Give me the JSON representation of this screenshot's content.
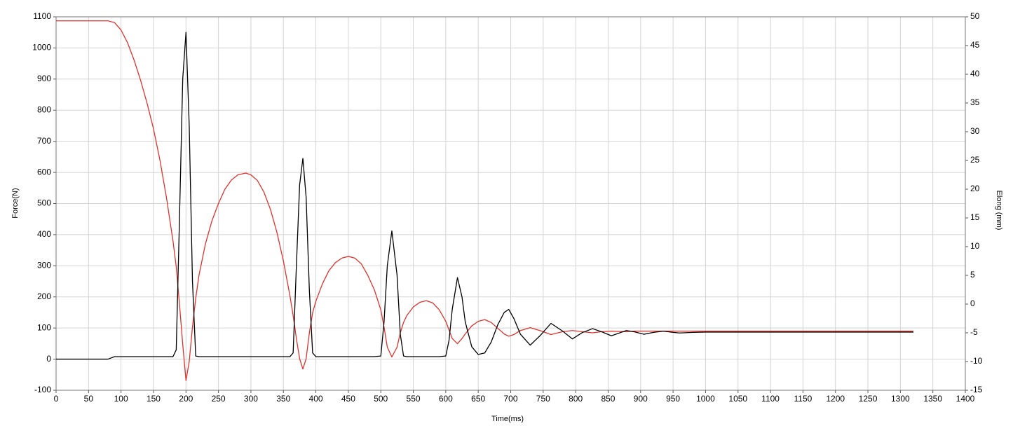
{
  "chart_data": {
    "type": "line",
    "x_label": "Time(ms)",
    "y_label": "Force(N)",
    "y2_label": "Elong (mm)",
    "x": [
      0,
      20,
      40,
      60,
      80,
      90,
      100,
      110,
      120,
      130,
      140,
      150,
      160,
      170,
      180,
      185,
      190,
      195,
      200,
      205,
      210,
      215,
      220,
      230,
      240,
      250,
      260,
      270,
      280,
      292,
      300,
      310,
      320,
      330,
      340,
      350,
      360,
      365,
      370,
      375,
      380,
      385,
      390,
      395,
      400,
      410,
      420,
      430,
      440,
      450,
      460,
      470,
      480,
      490,
      500,
      505,
      510,
      517,
      525,
      530,
      535,
      540,
      550,
      560,
      570,
      580,
      590,
      600,
      605,
      610,
      618,
      625,
      630,
      640,
      650,
      660,
      670,
      680,
      690,
      697,
      705,
      715,
      730,
      745,
      762,
      780,
      795,
      810,
      826,
      840,
      855,
      878,
      890,
      905,
      920,
      935,
      950,
      960,
      980,
      1000,
      1050,
      1100,
      1150,
      1200,
      1250,
      1300,
      1320
    ],
    "series": [
      {
        "name": "Force",
        "color": "#000000",
        "axis": "y",
        "values": [
          0,
          0,
          0,
          0,
          0,
          8,
          8,
          8,
          8,
          8,
          8,
          8,
          8,
          8,
          8,
          30,
          450,
          900,
          1050,
          750,
          250,
          10,
          8,
          8,
          8,
          8,
          8,
          8,
          8,
          8,
          8,
          8,
          8,
          8,
          8,
          8,
          8,
          20,
          300,
          560,
          645,
          520,
          220,
          20,
          8,
          8,
          8,
          8,
          8,
          8,
          8,
          8,
          8,
          8,
          10,
          120,
          300,
          412,
          270,
          80,
          10,
          8,
          8,
          8,
          8,
          8,
          8,
          10,
          60,
          160,
          262,
          200,
          120,
          40,
          15,
          20,
          55,
          110,
          150,
          160,
          130,
          80,
          45,
          75,
          115,
          90,
          65,
          85,
          98,
          88,
          75,
          92,
          88,
          80,
          86,
          90,
          86,
          84,
          86,
          87,
          87,
          87,
          87,
          87,
          87,
          87,
          87
        ]
      },
      {
        "name": "Elong",
        "color": "#e0322d",
        "axis": "y2",
        "values": [
          49.3,
          49.3,
          49.3,
          49.3,
          49.3,
          49,
          47.7,
          45.5,
          42.5,
          39,
          35,
          30.5,
          25,
          18.5,
          11,
          6.5,
          0,
          -7,
          -13.3,
          -10,
          -4,
          1,
          5,
          10.5,
          14.5,
          17.5,
          20,
          21.6,
          22.5,
          22.8,
          22.5,
          21.5,
          19.5,
          16.5,
          12.5,
          7.5,
          1.5,
          -2,
          -6,
          -9.5,
          -11.3,
          -9.5,
          -5,
          -1.5,
          0.5,
          3.5,
          5.8,
          7.2,
          8,
          8.3,
          8,
          7,
          5,
          2.5,
          -1,
          -4,
          -7.5,
          -9.2,
          -7.5,
          -5,
          -3.2,
          -2,
          -0.5,
          0.3,
          0.6,
          0.2,
          -1,
          -3,
          -4.5,
          -6,
          -6.9,
          -6,
          -5.2,
          -3.8,
          -3,
          -2.7,
          -3.2,
          -4.2,
          -5.2,
          -5.6,
          -5.3,
          -4.6,
          -4.1,
          -4.6,
          -5.3,
          -4.8,
          -4.6,
          -4.8,
          -5.0,
          -4.8,
          -4.7,
          -4.8,
          -4.7,
          -4.7,
          -4.7,
          -4.7,
          -4.7,
          -4.7,
          -4.7,
          -4.7,
          -4.7,
          -4.7,
          -4.7,
          -4.7,
          -4.7,
          -4.7,
          -4.7
        ]
      }
    ],
    "xlim": [
      0,
      1400
    ],
    "xticks": [
      0,
      50,
      100,
      150,
      200,
      250,
      300,
      350,
      400,
      450,
      500,
      550,
      600,
      650,
      700,
      750,
      800,
      850,
      900,
      950,
      1000,
      1050,
      1100,
      1150,
      1200,
      1250,
      1300,
      1350,
      1400
    ],
    "ylim": [
      -100,
      1100
    ],
    "yticks": [
      -100,
      0,
      100,
      200,
      300,
      400,
      500,
      600,
      700,
      800,
      900,
      1000,
      1100
    ],
    "y2lim": [
      -15,
      50
    ],
    "y2ticks": [
      -15,
      -10,
      -5,
      0,
      5,
      10,
      15,
      20,
      25,
      30,
      35,
      40,
      45,
      50
    ],
    "grid": true
  }
}
